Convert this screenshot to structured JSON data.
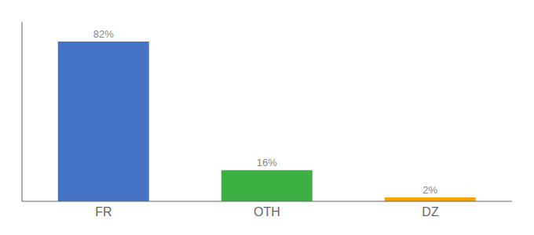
{
  "chart_data": {
    "type": "bar",
    "categories": [
      "FR",
      "OTH",
      "DZ"
    ],
    "values": [
      82,
      16,
      2
    ],
    "value_labels": [
      "82%",
      "16%",
      "2%"
    ],
    "data_labels": true,
    "colors": [
      "#4472C4",
      "#3CB043",
      "#FFA500"
    ],
    "ylim": [
      0,
      92
    ],
    "grid": false,
    "tick_labels": "x"
  }
}
